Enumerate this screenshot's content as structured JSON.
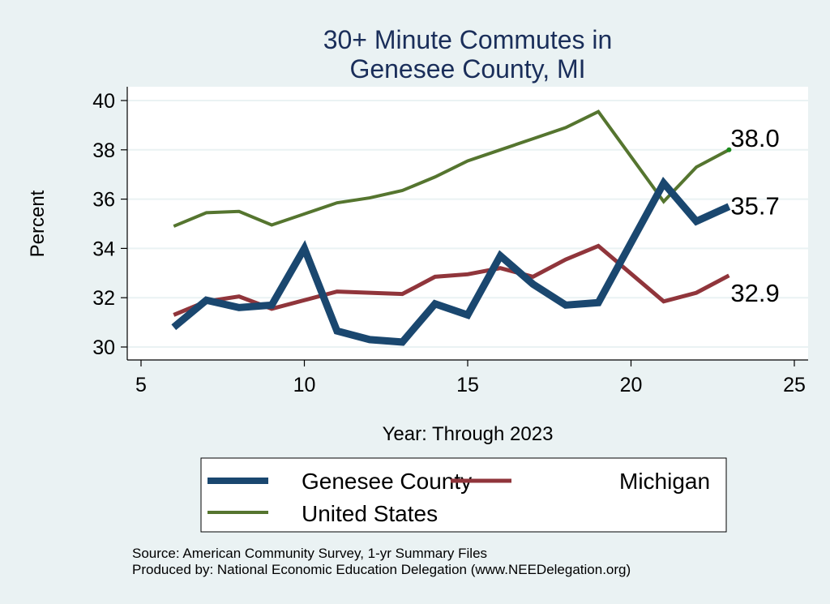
{
  "chart_data": {
    "type": "line",
    "title": [
      "30+ Minute Commutes in",
      "Genesee County, MI"
    ],
    "xlabel": "Year: Through 2023",
    "ylabel": "Percent",
    "xlim": [
      5,
      25
    ],
    "ylim": [
      30,
      40
    ],
    "xticks": [
      5,
      10,
      15,
      20,
      25
    ],
    "yticks": [
      30,
      32,
      34,
      36,
      38,
      40
    ],
    "grid": "horizontal",
    "x": [
      6,
      7,
      8,
      9,
      10,
      11,
      12,
      13,
      14,
      15,
      16,
      17,
      18,
      19,
      21,
      22,
      23
    ],
    "series": [
      {
        "name": "Genesee County",
        "color": "#1a476f",
        "values": [
          30.8,
          31.9,
          31.6,
          31.7,
          34.0,
          30.65,
          30.3,
          30.2,
          31.75,
          31.3,
          33.7,
          32.55,
          31.7,
          31.8,
          36.65,
          35.1,
          35.7
        ],
        "end_label": "35.7"
      },
      {
        "name": "Michigan",
        "color": "#90353b",
        "values": [
          31.3,
          31.85,
          32.05,
          31.55,
          31.9,
          32.25,
          32.2,
          32.15,
          32.85,
          32.95,
          33.2,
          32.85,
          33.55,
          34.1,
          31.85,
          32.2,
          32.9
        ],
        "end_label": "32.9"
      },
      {
        "name": "United States",
        "color": "#55752f",
        "values": [
          34.9,
          35.45,
          35.5,
          34.95,
          35.4,
          35.85,
          36.05,
          36.35,
          36.9,
          37.55,
          38.0,
          38.45,
          38.9,
          39.55,
          35.9,
          37.3,
          38.0
        ],
        "end_label": "38.0"
      }
    ],
    "legend": {
      "position": "bottom",
      "entries": [
        "Genesee County",
        "Michigan",
        "United States"
      ]
    },
    "notes": [
      "Source: American Community Survey, 1-yr Summary Files",
      "Produced by: National Economic Education Delegation (www.NEEDelegation.org)"
    ]
  }
}
